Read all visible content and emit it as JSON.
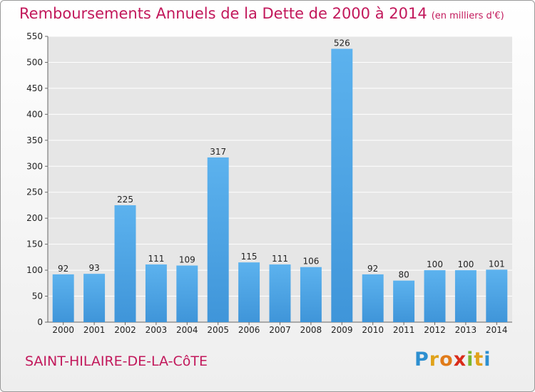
{
  "chart_data": {
    "type": "bar",
    "title": "Remboursements Annuels de la Dette de 2000 à 2014",
    "unit": "(en milliers d'€)",
    "categories": [
      "2000",
      "2001",
      "2002",
      "2003",
      "2004",
      "2005",
      "2006",
      "2007",
      "2008",
      "2009",
      "2010",
      "2011",
      "2012",
      "2013",
      "2014"
    ],
    "values": [
      92,
      93,
      225,
      111,
      109,
      317,
      115,
      111,
      106,
      526,
      92,
      80,
      100,
      100,
      101
    ],
    "ylim": [
      0,
      550
    ],
    "yticks": [
      0,
      50,
      100,
      150,
      200,
      250,
      300,
      350,
      400,
      450,
      500,
      550
    ],
    "grid": true,
    "bar_color": "#3f95d9"
  },
  "footer": {
    "commune": "SAINT-HILAIRE-DE-LA-CôTE",
    "brand_letters": [
      {
        "ch": "P",
        "color": "#2d8fd0"
      },
      {
        "ch": "r",
        "color": "#e0a21a"
      },
      {
        "ch": "o",
        "color": "#e07b1a"
      },
      {
        "ch": "x",
        "color": "#d92b1a"
      },
      {
        "ch": "i",
        "color": "#7cb82f"
      },
      {
        "ch": "t",
        "color": "#e0a21a"
      },
      {
        "ch": "i",
        "color": "#2d8fd0"
      }
    ]
  }
}
